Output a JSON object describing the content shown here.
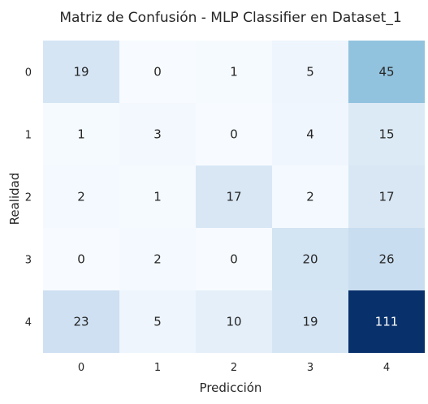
{
  "chart_data": {
    "type": "heatmap",
    "title": "Matriz de Confusión - MLP Classifier en Dataset_1",
    "xlabel": "Predicción",
    "ylabel": "Realidad",
    "x_categories": [
      "0",
      "1",
      "2",
      "3",
      "4"
    ],
    "y_categories": [
      "0",
      "1",
      "2",
      "3",
      "4"
    ],
    "values": [
      [
        19,
        0,
        1,
        5,
        45
      ],
      [
        1,
        3,
        0,
        4,
        15
      ],
      [
        2,
        1,
        17,
        2,
        17
      ],
      [
        0,
        2,
        0,
        20,
        26
      ],
      [
        23,
        5,
        10,
        19,
        111
      ]
    ],
    "colormap": "Blues",
    "value_range": [
      0,
      111
    ],
    "colorbar": false,
    "grid": false
  }
}
